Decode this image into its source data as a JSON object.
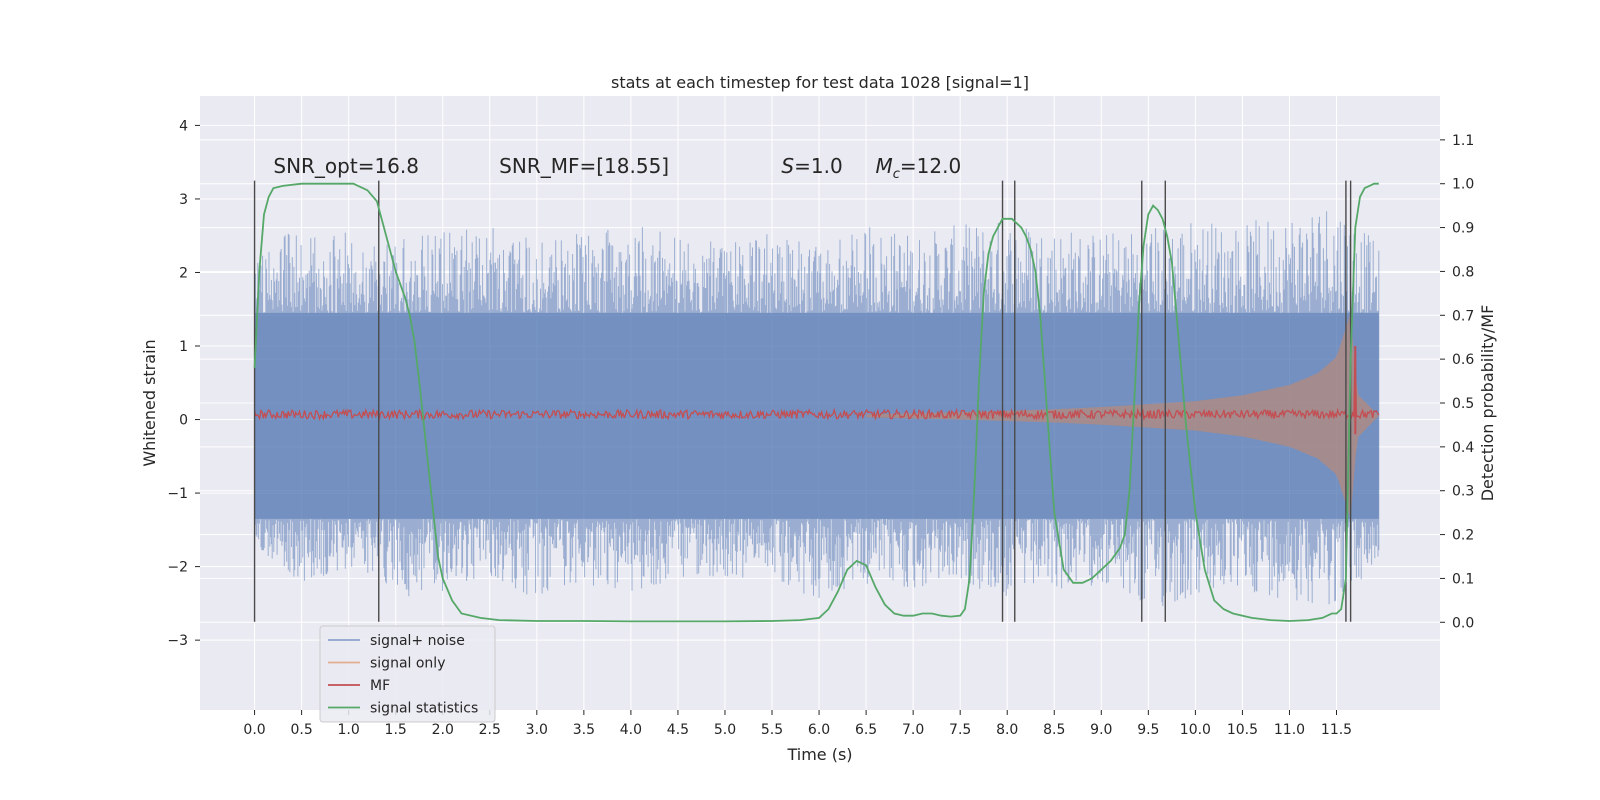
{
  "chart_data": {
    "type": "line",
    "title": "stats at each timestep for test data 1028 [signal=1]",
    "xlabel": "Time (s)",
    "ylabel": "Whitened strain",
    "ylabel_right": "Detection probability/MF",
    "xlim": [
      -0.58,
      12.6
    ],
    "ylim": [
      -3.95,
      4.4
    ],
    "ylim_right": [
      -0.2,
      1.2
    ],
    "x_ticks": [
      "0.0",
      "0.5",
      "1.0",
      "1.5",
      "2.0",
      "2.5",
      "3.0",
      "3.5",
      "4.0",
      "4.5",
      "5.0",
      "5.5",
      "6.0",
      "6.5",
      "7.0",
      "7.5",
      "8.0",
      "8.5",
      "9.0",
      "9.5",
      "10.0",
      "10.5",
      "11.0",
      "11.5"
    ],
    "y_ticks": [
      "4",
      "3",
      "2",
      "1",
      "0",
      "−1",
      "−2",
      "−3"
    ],
    "y_ticks_right": [
      "1.1",
      "1.0",
      "0.9",
      "0.8",
      "0.7",
      "0.6",
      "0.5",
      "0.4",
      "0.3",
      "0.2",
      "0.1",
      "0.0"
    ],
    "grid": true,
    "legend_position": "bottom-left",
    "annotations": [
      {
        "text": "SNR_opt=16.8",
        "x": 0.2,
        "y": 3.35
      },
      {
        "text": "SNR_MF=[18.55]",
        "x": 2.6,
        "y": 3.35
      },
      {
        "text": "S=1.0",
        "x": 5.6,
        "y": 3.35
      },
      {
        "text": "M_c=12.0",
        "x": 6.6,
        "y": 3.35
      }
    ],
    "noise_envelope": {
      "x": [
        0.0,
        0.5,
        1.0,
        1.5,
        2.0,
        2.5,
        3.0,
        3.5,
        4.0,
        4.5,
        5.0,
        5.5,
        6.0,
        6.5,
        7.0,
        7.5,
        8.0,
        8.5,
        9.0,
        9.5,
        10.0,
        10.5,
        11.0,
        11.5,
        11.95
      ],
      "upper": [
        2.2,
        2.6,
        2.5,
        2.4,
        2.5,
        2.6,
        2.4,
        2.5,
        2.6,
        2.5,
        2.4,
        2.5,
        2.3,
        2.6,
        2.5,
        2.6,
        2.7,
        2.6,
        2.5,
        2.6,
        2.7,
        2.6,
        2.8,
        3.0,
        2.3
      ],
      "lower": [
        -1.8,
        -2.2,
        -2.0,
        -2.4,
        -2.3,
        -2.1,
        -2.4,
        -2.2,
        -2.3,
        -2.2,
        -2.1,
        -2.2,
        -2.4,
        -2.2,
        -2.3,
        -2.2,
        -2.4,
        -2.3,
        -2.2,
        -2.6,
        -2.4,
        -2.3,
        -2.4,
        -2.5,
        -2.0
      ],
      "core_upper": 1.45,
      "core_lower": -1.35
    },
    "signal_envelope": {
      "x": [
        6.5,
        7.5,
        8.0,
        8.5,
        9.0,
        9.5,
        10.0,
        10.5,
        11.0,
        11.3,
        11.5,
        11.65,
        11.72,
        11.95
      ],
      "amp": [
        0.02,
        0.05,
        0.07,
        0.09,
        0.12,
        0.16,
        0.2,
        0.28,
        0.42,
        0.58,
        0.8,
        1.4,
        0.3,
        0.0
      ]
    },
    "mf": {
      "baseline": 0.07,
      "noise": 0.06,
      "spike": {
        "x": 11.7,
        "y": 1.0
      }
    },
    "series": [
      {
        "name": "signal+ noise",
        "color": "#4c72b0"
      },
      {
        "name": "signal only",
        "color": "#dd8452"
      },
      {
        "name": "MF",
        "color": "#c44e52"
      },
      {
        "name": "signal statistics",
        "color": "#55a868",
        "axis": "right",
        "x": [
          0.0,
          0.05,
          0.1,
          0.15,
          0.2,
          0.3,
          0.5,
          0.7,
          0.9,
          1.0,
          1.05,
          1.1,
          1.15,
          1.2,
          1.3,
          1.4,
          1.5,
          1.6,
          1.65,
          1.7,
          1.75,
          1.8,
          1.85,
          1.9,
          1.95,
          2.0,
          2.1,
          2.2,
          2.4,
          2.6,
          3.0,
          3.5,
          4.0,
          4.5,
          5.0,
          5.5,
          5.8,
          6.0,
          6.1,
          6.2,
          6.3,
          6.4,
          6.5,
          6.6,
          6.7,
          6.8,
          6.9,
          7.0,
          7.1,
          7.2,
          7.3,
          7.4,
          7.5,
          7.55,
          7.6,
          7.65,
          7.7,
          7.75,
          7.8,
          7.85,
          7.9,
          7.95,
          8.0,
          8.05,
          8.1,
          8.15,
          8.2,
          8.25,
          8.3,
          8.35,
          8.4,
          8.45,
          8.5,
          8.6,
          8.7,
          8.8,
          8.9,
          9.0,
          9.1,
          9.2,
          9.25,
          9.3,
          9.35,
          9.4,
          9.45,
          9.5,
          9.55,
          9.6,
          9.65,
          9.7,
          9.75,
          9.8,
          9.9,
          10.0,
          10.1,
          10.2,
          10.3,
          10.4,
          10.6,
          10.8,
          11.0,
          11.2,
          11.35,
          11.45,
          11.5,
          11.55,
          11.6,
          11.62,
          11.65,
          11.7,
          11.75,
          11.8,
          11.85,
          11.9,
          11.95
        ],
        "values": [
          0.58,
          0.8,
          0.93,
          0.97,
          0.99,
          0.995,
          1.0,
          1.0,
          1.0,
          1.0,
          1.0,
          0.995,
          0.99,
          0.985,
          0.96,
          0.88,
          0.8,
          0.74,
          0.7,
          0.64,
          0.55,
          0.45,
          0.35,
          0.25,
          0.15,
          0.1,
          0.05,
          0.02,
          0.01,
          0.005,
          0.003,
          0.003,
          0.002,
          0.002,
          0.002,
          0.003,
          0.005,
          0.01,
          0.03,
          0.07,
          0.12,
          0.14,
          0.13,
          0.08,
          0.04,
          0.02,
          0.015,
          0.015,
          0.02,
          0.02,
          0.015,
          0.013,
          0.015,
          0.03,
          0.1,
          0.3,
          0.55,
          0.75,
          0.84,
          0.88,
          0.9,
          0.92,
          0.92,
          0.92,
          0.91,
          0.9,
          0.88,
          0.85,
          0.8,
          0.7,
          0.55,
          0.4,
          0.25,
          0.12,
          0.09,
          0.09,
          0.1,
          0.12,
          0.14,
          0.17,
          0.2,
          0.3,
          0.5,
          0.72,
          0.86,
          0.93,
          0.95,
          0.94,
          0.92,
          0.88,
          0.82,
          0.7,
          0.45,
          0.25,
          0.12,
          0.05,
          0.03,
          0.02,
          0.01,
          0.005,
          0.003,
          0.005,
          0.01,
          0.02,
          0.02,
          0.03,
          0.1,
          0.3,
          0.6,
          0.9,
          0.97,
          0.99,
          0.995,
          1.0,
          1.0
        ]
      }
    ],
    "vlines": [
      {
        "x": 0.0,
        "y0": -2.75,
        "y1": 3.25
      },
      {
        "x": 1.32,
        "y0": -2.75,
        "y1": 3.25
      },
      {
        "x": 7.95,
        "y0": -2.75,
        "y1": 3.25
      },
      {
        "x": 8.08,
        "y0": -2.75,
        "y1": 3.25
      },
      {
        "x": 9.43,
        "y0": -2.75,
        "y1": 3.25
      },
      {
        "x": 9.68,
        "y0": -2.75,
        "y1": 3.25
      },
      {
        "x": 11.6,
        "y0": -2.75,
        "y1": 3.25
      },
      {
        "x": 11.65,
        "y0": -2.75,
        "y1": 3.25
      }
    ]
  }
}
